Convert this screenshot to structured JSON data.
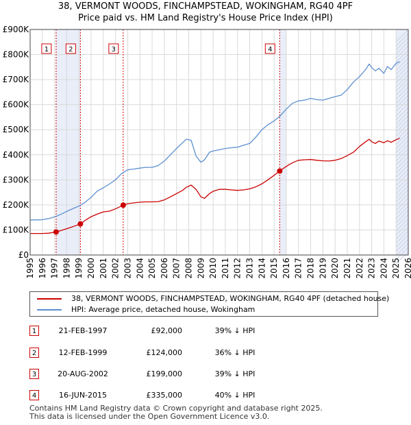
{
  "title_line1": "38, VERMONT WOODS, FINCHAMPSTEAD, WOKINGHAM, RG40 4PF",
  "title_line2": "Price paid vs. HM Land Registry's House Price Index (HPI)",
  "chart_data": {
    "type": "line",
    "title": "38, VERMONT WOODS, FINCHAMPSTEAD, WOKINGHAM, RG40 4PF — Price paid vs. HM Land Registry's House Price Index (HPI)",
    "xlabel": "",
    "ylabel": "",
    "xlim": [
      1995,
      2026
    ],
    "ylim": [
      0,
      900000
    ],
    "grid": true,
    "x_ticks": [
      1995,
      1996,
      1997,
      1998,
      1999,
      2000,
      2001,
      2002,
      2003,
      2004,
      2005,
      2006,
      2007,
      2008,
      2009,
      2010,
      2011,
      2012,
      2013,
      2014,
      2015,
      2016,
      2017,
      2018,
      2019,
      2020,
      2021,
      2022,
      2023,
      2024,
      2025,
      2026
    ],
    "x_tick_labels": [
      "1995",
      "1996",
      "1997",
      "1998",
      "1999",
      "2000",
      "2001",
      "2002",
      "2003",
      "2004",
      "2005",
      "2006",
      "2007",
      "2008",
      "2009",
      "2010",
      "2011",
      "2012",
      "2013",
      "2014",
      "2015",
      "2016",
      "2017",
      "2018",
      "2019",
      "2020",
      "2021",
      "2022",
      "2023",
      "2024",
      "2025",
      "2026"
    ],
    "y_ticks": [
      0,
      100000,
      200000,
      300000,
      400000,
      500000,
      600000,
      700000,
      800000,
      900000
    ],
    "y_tick_labels": [
      "£0",
      "£100K",
      "£200K",
      "£300K",
      "£400K",
      "£500K",
      "£600K",
      "£700K",
      "£800K",
      "£900K"
    ],
    "shaded_spans": [
      [
        1997.13,
        1999.12
      ],
      [
        2015.46,
        2016.0
      ],
      [
        2025.0,
        2026.0
      ]
    ],
    "series": [
      {
        "name": "38, VERMONT WOODS, FINCHAMPSTEAD, WOKINGHAM, RG40 4PF (detached house)",
        "color": "#cc0000",
        "x": [
          1995.0,
          1995.5,
          1996.0,
          1996.5,
          1997.13,
          1997.5,
          1998.0,
          1998.5,
          1999.12,
          1999.5,
          2000.0,
          2000.5,
          2001.0,
          2001.5,
          2002.0,
          2002.63,
          2003.0,
          2003.5,
          2004.0,
          2004.5,
          2005.0,
          2005.5,
          2006.0,
          2006.5,
          2007.0,
          2007.5,
          2007.8,
          2008.2,
          2008.6,
          2009.0,
          2009.3,
          2009.7,
          2010.0,
          2010.5,
          2011.0,
          2011.5,
          2012.0,
          2012.5,
          2013.0,
          2013.5,
          2014.0,
          2014.5,
          2015.0,
          2015.46,
          2015.8,
          2016.2,
          2016.6,
          2017.0,
          2017.5,
          2018.0,
          2018.5,
          2019.0,
          2019.5,
          2020.0,
          2020.5,
          2021.0,
          2021.5,
          2022.0,
          2022.5,
          2022.8,
          2023.0,
          2023.3,
          2023.6,
          2024.0,
          2024.3,
          2024.6,
          2025.0,
          2025.3
        ],
        "values": [
          86000,
          86000,
          86000,
          87000,
          92000,
          97000,
          105000,
          113000,
          124000,
          138000,
          153000,
          163000,
          172000,
          175000,
          184000,
          199000,
          205000,
          208000,
          211000,
          212000,
          212000,
          213000,
          220000,
          232000,
          245000,
          258000,
          270000,
          279000,
          262000,
          232000,
          226000,
          245000,
          254000,
          262000,
          262000,
          260000,
          258000,
          260000,
          264000,
          272000,
          284000,
          300000,
          318000,
          335000,
          347000,
          360000,
          370000,
          378000,
          380000,
          381000,
          378000,
          376000,
          375000,
          378000,
          385000,
          397000,
          410000,
          433000,
          452000,
          462000,
          452000,
          445000,
          455000,
          448000,
          456000,
          450000,
          460000,
          466000
        ]
      },
      {
        "name": "HPI: Average price, detached house, Wokingham",
        "color": "#5b8fd0",
        "x": [
          1995.0,
          1995.5,
          1996.0,
          1996.5,
          1997.0,
          1997.5,
          1998.0,
          1998.5,
          1999.0,
          1999.5,
          2000.0,
          2000.5,
          2001.0,
          2001.5,
          2002.0,
          2002.5,
          2003.0,
          2003.5,
          2004.0,
          2004.5,
          2005.0,
          2005.5,
          2006.0,
          2006.5,
          2007.0,
          2007.5,
          2007.8,
          2008.2,
          2008.6,
          2009.0,
          2009.3,
          2009.7,
          2010.0,
          2010.5,
          2011.0,
          2011.5,
          2012.0,
          2012.5,
          2013.0,
          2013.5,
          2014.0,
          2014.5,
          2015.0,
          2015.5,
          2016.0,
          2016.5,
          2017.0,
          2017.5,
          2018.0,
          2018.5,
          2019.0,
          2019.5,
          2020.0,
          2020.5,
          2021.0,
          2021.5,
          2022.0,
          2022.5,
          2022.8,
          2023.0,
          2023.3,
          2023.6,
          2024.0,
          2024.3,
          2024.6,
          2025.0,
          2025.3
        ],
        "values": [
          140000,
          140000,
          141000,
          145000,
          152000,
          162000,
          174000,
          185000,
          195000,
          210000,
          230000,
          255000,
          268000,
          283000,
          300000,
          325000,
          340000,
          343000,
          347000,
          350000,
          350000,
          357000,
          375000,
          400000,
          425000,
          448000,
          462000,
          458000,
          395000,
          370000,
          380000,
          410000,
          415000,
          420000,
          425000,
          428000,
          430000,
          438000,
          445000,
          470000,
          500000,
          520000,
          535000,
          555000,
          582000,
          605000,
          615000,
          618000,
          625000,
          620000,
          618000,
          625000,
          632000,
          638000,
          660000,
          690000,
          712000,
          740000,
          762000,
          748000,
          735000,
          745000,
          725000,
          752000,
          740000,
          765000,
          772000
        ]
      }
    ],
    "sale_markers": [
      {
        "label": "1",
        "x": 1997.13,
        "y": 92000
      },
      {
        "label": "2",
        "x": 1999.12,
        "y": 124000
      },
      {
        "label": "3",
        "x": 2002.63,
        "y": 199000
      },
      {
        "label": "4",
        "x": 2015.46,
        "y": 335000
      }
    ]
  },
  "legend": {
    "red_label": "38, VERMONT WOODS, FINCHAMPSTEAD, WOKINGHAM, RG40 4PF (detached house)",
    "blue_label": "HPI: Average price, detached house, Wokingham"
  },
  "sales": [
    {
      "num": "1",
      "date": "21-FEB-1997",
      "price": "£92,000",
      "hpi": "39% ↓ HPI"
    },
    {
      "num": "2",
      "date": "12-FEB-1999",
      "price": "£124,000",
      "hpi": "36% ↓ HPI"
    },
    {
      "num": "3",
      "date": "20-AUG-2002",
      "price": "£199,000",
      "hpi": "39% ↓ HPI"
    },
    {
      "num": "4",
      "date": "16-JUN-2015",
      "price": "£335,000",
      "hpi": "40% ↓ HPI"
    }
  ],
  "footer_line1": "Contains HM Land Registry data © Crown copyright and database right 2025.",
  "footer_line2": "This data is licensed under the Open Government Licence v3.0."
}
